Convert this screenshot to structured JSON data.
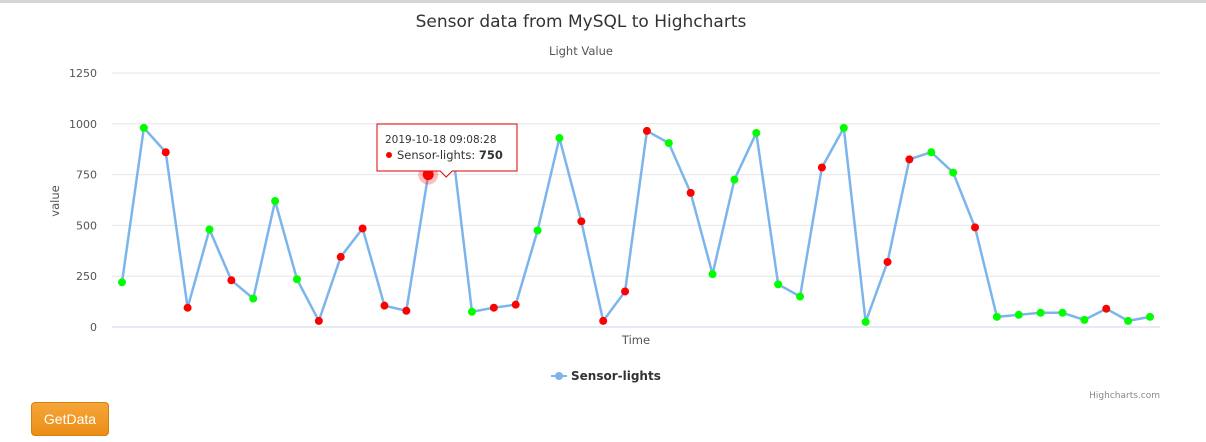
{
  "chart_data": {
    "type": "line",
    "title": "Sensor data from MySQL to Highcharts",
    "subtitle": "Light Value",
    "xlabel": "Time",
    "ylabel": "value",
    "ylim": [
      0,
      1250
    ],
    "yticks": [
      0,
      250,
      500,
      750,
      1000,
      1250
    ],
    "grid": true,
    "legend": "bottom-center",
    "series": [
      {
        "name": "Sensor-lights",
        "color": "#7cb5ec",
        "values": [
          220,
          980,
          860,
          95,
          480,
          230,
          140,
          620,
          235,
          30,
          345,
          485,
          105,
          80,
          750,
          975,
          75,
          95,
          110,
          475,
          930,
          520,
          30,
          175,
          965,
          905,
          660,
          260,
          725,
          955,
          210,
          150,
          785,
          980,
          25,
          320,
          825,
          860,
          760,
          490,
          50,
          60,
          70,
          70,
          35,
          90,
          30,
          50
        ],
        "point_colors": [
          "#00ff00",
          "#00ff00",
          "#ff0000",
          "#ff0000",
          "#00ff00",
          "#ff0000",
          "#00ff00",
          "#00ff00",
          "#00ff00",
          "#ff0000",
          "#ff0000",
          "#ff0000",
          "#ff0000",
          "#ff0000",
          "#ff0000",
          "#00ff00",
          "#00ff00",
          "#ff0000",
          "#ff0000",
          "#00ff00",
          "#00ff00",
          "#ff0000",
          "#ff0000",
          "#ff0000",
          "#ff0000",
          "#00ff00",
          "#ff0000",
          "#00ff00",
          "#00ff00",
          "#00ff00",
          "#00ff00",
          "#00ff00",
          "#ff0000",
          "#00ff00",
          "#00ff00",
          "#ff0000",
          "#ff0000",
          "#00ff00",
          "#00ff00",
          "#ff0000",
          "#00ff00",
          "#00ff00",
          "#00ff00",
          "#00ff00",
          "#00ff00",
          "#ff0000",
          "#00ff00",
          "#00ff00"
        ]
      }
    ],
    "tooltip": {
      "point_index": 14,
      "time": "2019-10-18 09:08:28",
      "series": "Sensor-lights",
      "value": "750"
    },
    "credits": "Highcharts.com"
  },
  "controls": {
    "getdata_label": "GetData"
  }
}
